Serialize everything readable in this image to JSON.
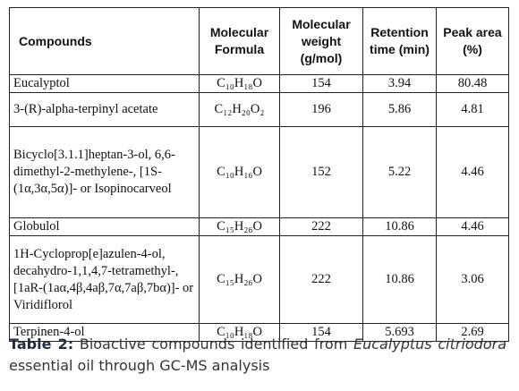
{
  "table": {
    "header": [
      "Compounds",
      "Molecular Formula",
      "Molecular weight (g/mol)",
      "Retention time (min)",
      "Peak area (%)"
    ],
    "rows": [
      [
        "Eucalyptol",
        "C₁₀H₁₈O",
        "154",
        "3.94",
        "80.48"
      ],
      [
        "3-(R)-alpha-terpinyl acetate",
        "C₁₂H₂₀O₂",
        "196",
        "5.86",
        "4.81"
      ],
      [
        "Bicyclo[3.1.1]heptan-3-ol, 6,6-dimethyl-2-methylene-, [1S-(1α,3α,5α)]- or Isopinocarveol",
        "C₁₀H₁₆O",
        "152",
        "5.22",
        "4.46"
      ],
      [
        "Globulol",
        "C₁₅H₂₆O",
        "222",
        "10.86",
        "4.46"
      ],
      [
        "1H-Cycloprop[e]azulen-4-ol, decahydro-1,1,4,7-tetramethyl-, [1aR-(1aα,4β,4aβ,7α,7aβ,7bα)]- or Viridiflorol",
        "C₁₅H₂₆O",
        "222",
        "10.86",
        "3.06"
      ],
      [
        "Terpinen-4-ol",
        "C₁₀H₁₈O",
        "154",
        "5.693",
        "2.69"
      ]
    ]
  },
  "caption": {
    "label": "Table 2:",
    "text_1": " Bioactive compounds identified from ",
    "species": "Eucalyptus citriodora",
    "text_2": " essential oil through GC-MS analysis"
  }
}
